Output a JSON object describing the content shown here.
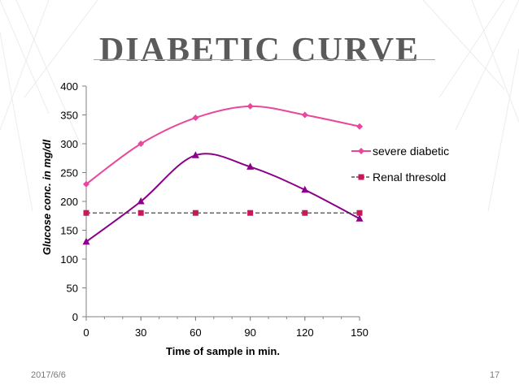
{
  "slide": {
    "title": "DIABETIC CURVE",
    "date": "2017/6/6",
    "page": "17"
  },
  "chart_data": {
    "type": "line",
    "x": [
      0,
      30,
      60,
      90,
      120,
      150
    ],
    "xlabel": "Time of sample in min.",
    "ylabel": "Glucose conc. in mg/dl",
    "xlim": [
      0,
      150
    ],
    "ylim": [
      0,
      400
    ],
    "yticks": [
      0,
      50,
      100,
      150,
      200,
      250,
      300,
      350,
      400
    ],
    "xticks": [
      0,
      30,
      60,
      90,
      120,
      150
    ],
    "grid": false,
    "legend": "right",
    "series": [
      {
        "name": "severe diabetic",
        "values": [
          230,
          300,
          345,
          365,
          350,
          330
        ],
        "color": "#e8479c",
        "marker": "diamond",
        "smooth": true,
        "dashed": false,
        "in_legend": true
      },
      {
        "name": "",
        "values": [
          130,
          200,
          280,
          260,
          220,
          170
        ],
        "color": "#8b008b",
        "marker": "triangle",
        "smooth": true,
        "dashed": false,
        "in_legend": false
      },
      {
        "name": "Renal thresold",
        "values": [
          180,
          180,
          180,
          180,
          180,
          180
        ],
        "color": "#c8185a",
        "marker": "square",
        "smooth": false,
        "dashed": true,
        "in_legend": true
      }
    ]
  }
}
